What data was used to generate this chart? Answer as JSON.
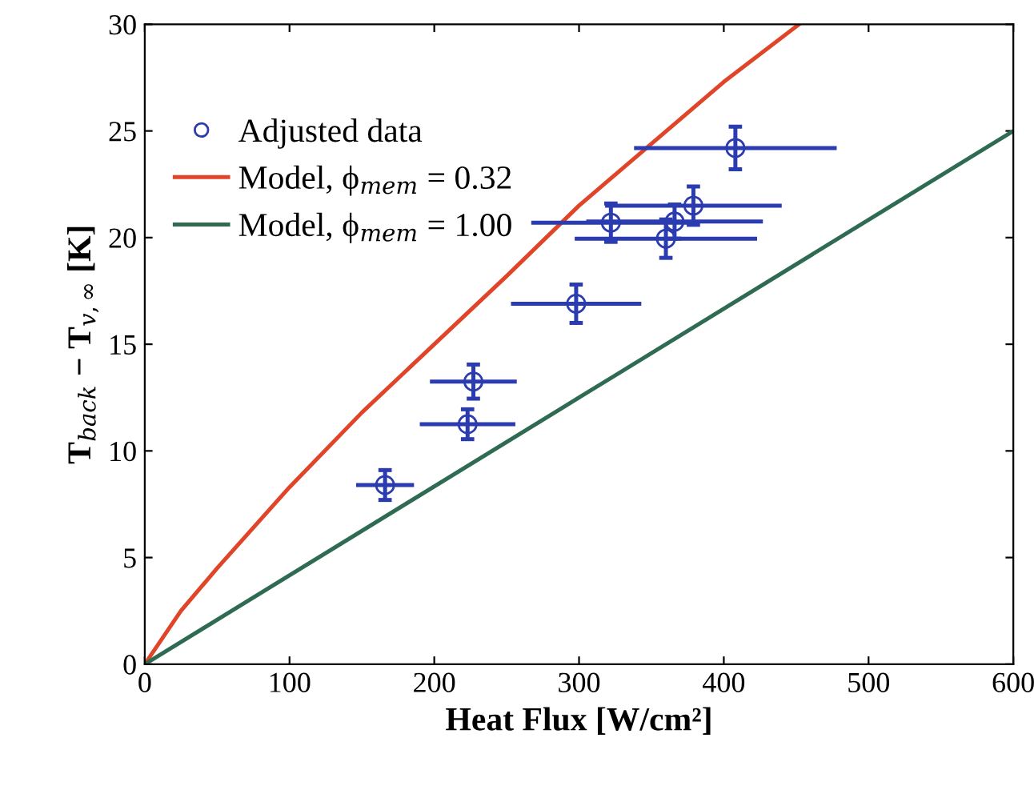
{
  "chart_data": {
    "type": "scatter",
    "xlabel": "Heat Flux [W/cm²]",
    "ylabel": "T$_{back}$ − T$_{v,∞}$ [K]",
    "xlim": [
      0,
      600
    ],
    "ylim": [
      0,
      30
    ],
    "xticks": [
      0,
      100,
      200,
      300,
      400,
      500,
      600
    ],
    "yticks": [
      0,
      5,
      10,
      15,
      20,
      25,
      30
    ],
    "grid": false,
    "legend": "top left",
    "series": [
      {
        "name": "Adjusted data",
        "marker": "circle",
        "color": "#2b3bb0",
        "x": [
          166,
          223,
          227,
          298,
          322,
          360,
          366,
          379,
          408
        ],
        "values": [
          8.4,
          11.25,
          13.25,
          16.9,
          20.7,
          19.95,
          20.75,
          21.5,
          24.2
        ],
        "xerrors": [
          20,
          33,
          30,
          45,
          55,
          63,
          61,
          61,
          70
        ],
        "errors": [
          0.7,
          0.7,
          0.8,
          0.9,
          0.9,
          0.9,
          0.8,
          0.9,
          1.0
        ]
      },
      {
        "name": "Model, ϕ$_{mem}$ = 0.32",
        "type": "line",
        "color": "#e0452a",
        "x": [
          0,
          25,
          50,
          100,
          150,
          200,
          250,
          300,
          350,
          400,
          452
        ],
        "values": [
          0,
          2.5,
          4.5,
          8.3,
          11.8,
          15.0,
          18.2,
          21.5,
          24.4,
          27.3,
          30
        ]
      },
      {
        "name": "Model, ϕ$_{mem}$ = 1.00",
        "type": "line",
        "color": "#2e6b52",
        "x": [
          0,
          300,
          600
        ],
        "values": [
          0,
          12.5,
          25
        ]
      }
    ]
  }
}
